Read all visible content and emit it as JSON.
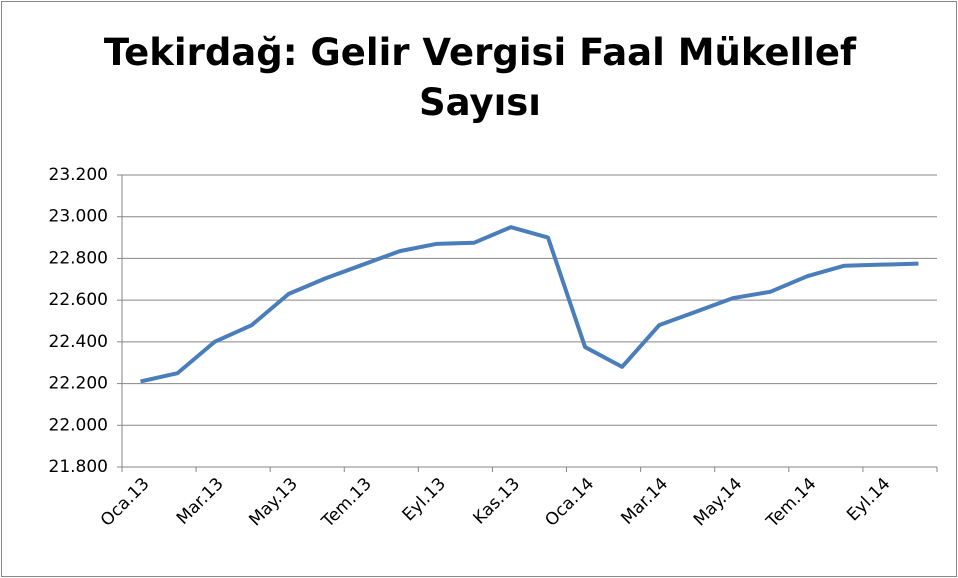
{
  "chart_data": {
    "type": "line",
    "title": "Tekirdağ: Gelir Vergisi Faal Mükellef Sayısı",
    "categories": [
      "Oca.13",
      null,
      "Mar.13",
      null,
      "May.13",
      null,
      "Tem.13",
      null,
      "Eyl.13",
      null,
      "Kas.13",
      null,
      "Oca.14",
      null,
      "Mar.14",
      null,
      "May.14",
      null,
      "Tem.14",
      null,
      "Eyl.14",
      null
    ],
    "series": [
      {
        "color": "#4a7ebb",
        "values": [
          22210,
          22250,
          22400,
          22480,
          22630,
          22705,
          22770,
          22835,
          22870,
          22875,
          22950,
          22900,
          22375,
          22280,
          22480,
          22545,
          22610,
          22640,
          22715,
          22765,
          22770,
          22775
        ]
      }
    ],
    "ylim": [
      21800,
      23200
    ],
    "yticks": [
      {
        "value": 21800,
        "label": "21.800"
      },
      {
        "value": 22000,
        "label": "22.000"
      },
      {
        "value": 22200,
        "label": "22.200"
      },
      {
        "value": 22400,
        "label": "22.400"
      },
      {
        "value": 22600,
        "label": "22.600"
      },
      {
        "value": 22800,
        "label": "22.800"
      },
      {
        "value": 23000,
        "label": "23.000"
      },
      {
        "value": 23200,
        "label": "23.200"
      }
    ],
    "grid": true
  }
}
